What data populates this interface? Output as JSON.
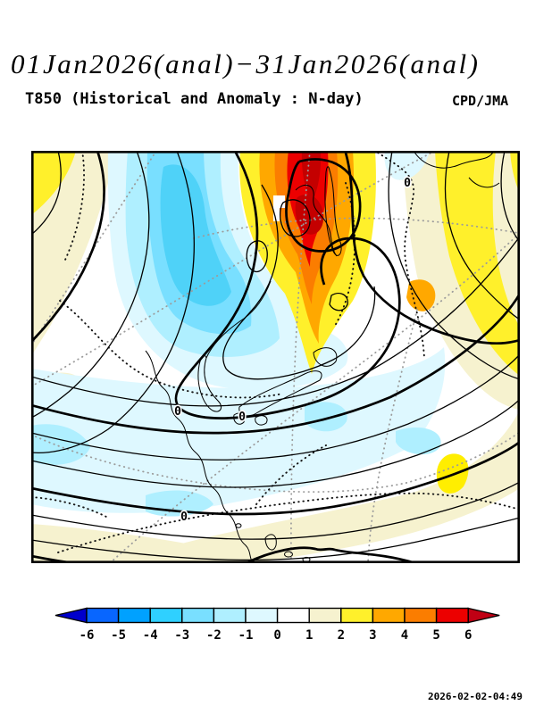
{
  "header": {
    "title": "01Jan2026(anal)−31Jan2026(anal)",
    "subtitle": "T850 (Historical and Anomaly : N-day)",
    "agency": "CPD/JMA"
  },
  "footer": {
    "timestamp": "2026-02-02-04:49"
  },
  "map": {
    "zero_label": "0"
  },
  "palette": {
    "arrow_low": "#0000CC",
    "m6": "#0866FF",
    "m5": "#00A1FF",
    "m4": "#2FD0FF",
    "m3": "#79DFFF",
    "m2": "#AFEFFF",
    "m1": "#DEF8FF",
    "zero": "#FFFFFF",
    "p1": "#F6F2CF",
    "p2": "#FFF02B",
    "p3": "#FFA800",
    "p4": "#FB7D00",
    "p5": "#EC0000",
    "arrow_high": "#C00014",
    "deep_cyan": "#4FD2F8",
    "dark_red": "#C40000",
    "bright_yellow": "#FFEE00",
    "white": "#FFFFFF"
  },
  "colorbar": {
    "tick_labels": [
      "-6",
      "-5",
      "-4",
      "-3",
      "-2",
      "-1",
      "0",
      "1",
      "2",
      "3",
      "4",
      "5",
      "6"
    ],
    "segment_colors": [
      "#0866FF",
      "#00A1FF",
      "#2FD0FF",
      "#79DFFF",
      "#AFEFFF",
      "#DEF8FF",
      "#FFFFFF",
      "#F6F2CF",
      "#FFF02B",
      "#FFA800",
      "#FB7D00",
      "#EC0000"
    ],
    "arrow_low_color": "#0000CC",
    "arrow_high_color": "#C00014"
  },
  "chart_data": {
    "type": "heatmap",
    "subtype": "contour-anomaly-map",
    "title": "01Jan2026(anal)−31Jan2026(anal)",
    "subtitle": "T850 (Historical and Anomaly : N-day)",
    "agency": "CPD/JMA",
    "generated": "2026-02-02-04:49",
    "region": "East Asia / Northwest Pacific",
    "colorbar_levels": [
      -6,
      -5,
      -4,
      -3,
      -2,
      -1,
      0,
      1,
      2,
      3,
      4,
      5,
      6
    ],
    "colorbar_colors": [
      "#0000CC",
      "#0866FF",
      "#00A1FF",
      "#2FD0FF",
      "#79DFFF",
      "#AFEFFF",
      "#DEF8FF",
      "#FFFFFF",
      "#F6F2CF",
      "#FFF02B",
      "#FFA800",
      "#FB7D00",
      "#EC0000",
      "#C00014"
    ],
    "contour_label_values": [
      0
    ],
    "legend_position": "bottom",
    "features": [
      "strong positive anomaly core (>+6) over the Sea of Okhotsk / Russian Far East",
      "negative anomaly pool (-3 to -4) over Mongolia and eastern Siberia",
      "weak positive anomaly band (+1 to +2) along the right (Pacific) side",
      "weak negative anomaly (-1) across Japan, Korea and the East China Sea",
      "solid black contours: historical T850 field; dotted: anomaly zero lines and graticule"
    ]
  }
}
